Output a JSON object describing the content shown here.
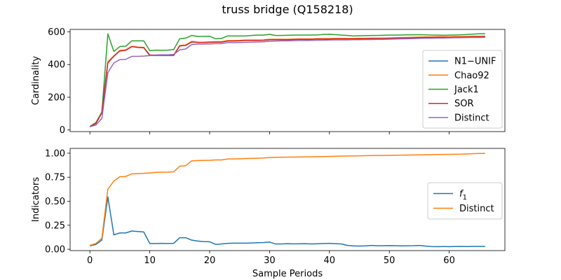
{
  "figure": {
    "title": "truss bridge (Q158218)"
  },
  "chart_data": [
    {
      "type": "line",
      "ylabel": "Cardinality",
      "xlabel": "",
      "xlim": [
        -3.3,
        69.3
      ],
      "ylim": [
        -10,
        615
      ],
      "xticks": [
        0,
        10,
        20,
        30,
        40,
        50,
        60
      ],
      "yticks": [
        0,
        200,
        400,
        600
      ],
      "ytick_labels": [
        "0",
        "200",
        "400",
        "600"
      ],
      "legend": "right",
      "x": [
        0,
        1,
        2,
        3,
        4,
        5,
        6,
        7,
        8,
        9,
        10,
        11,
        12,
        13,
        14,
        15,
        16,
        17,
        18,
        19,
        20,
        21,
        22,
        23,
        24,
        25,
        26,
        27,
        28,
        29,
        30,
        31,
        32,
        33,
        34,
        35,
        36,
        37,
        38,
        39,
        40,
        41,
        42,
        43,
        44,
        45,
        46,
        47,
        48,
        49,
        50,
        51,
        52,
        53,
        54,
        55,
        56,
        57,
        58,
        59,
        60,
        61,
        62,
        63,
        64,
        65,
        66
      ],
      "series": [
        {
          "name": "N1−UNIF",
          "color": "#1f77b4",
          "values": [
            20,
            40,
            105,
            415,
            450,
            485,
            488,
            510,
            505,
            503,
            455,
            455,
            455,
            455,
            455,
            515,
            518,
            540,
            535,
            535,
            537,
            538,
            538,
            545,
            545,
            546,
            548,
            548,
            548,
            549,
            553,
            553,
            553,
            553,
            554,
            555,
            555,
            555,
            557,
            557,
            557,
            558,
            558,
            558,
            558,
            559,
            559,
            560,
            560,
            560,
            561,
            562,
            563,
            564,
            565,
            566,
            567,
            567,
            568,
            568,
            568,
            569,
            569,
            570,
            571,
            571,
            572
          ]
        },
        {
          "name": "Chao92",
          "color": "#ff7f0e",
          "values": [
            20,
            40,
            105,
            418,
            452,
            487,
            490,
            512,
            507,
            505,
            458,
            457,
            457,
            457,
            457,
            517,
            520,
            542,
            537,
            537,
            539,
            540,
            540,
            547,
            547,
            548,
            550,
            550,
            550,
            551,
            555,
            555,
            555,
            555,
            556,
            557,
            557,
            557,
            559,
            559,
            559,
            560,
            560,
            560,
            560,
            561,
            561,
            562,
            562,
            562,
            563,
            564,
            565,
            566,
            567,
            568,
            569,
            569,
            570,
            570,
            570,
            571,
            571,
            572,
            573,
            573,
            574
          ]
        },
        {
          "name": "Jack1",
          "color": "#2ca02c",
          "values": [
            22,
            45,
            110,
            588,
            480,
            510,
            512,
            545,
            545,
            545,
            485,
            488,
            487,
            488,
            492,
            558,
            562,
            578,
            572,
            572,
            573,
            558,
            560,
            575,
            575,
            575,
            575,
            578,
            580,
            580,
            585,
            578,
            578,
            579,
            580,
            580,
            580,
            581,
            581,
            584,
            585,
            583,
            580,
            578,
            575,
            576,
            577,
            578,
            578,
            579,
            580,
            580,
            581,
            582,
            582,
            583,
            582,
            580,
            580,
            579,
            580,
            581,
            582,
            584,
            586,
            588,
            588
          ]
        },
        {
          "name": "SOR",
          "color": "#d62728",
          "values": [
            20,
            40,
            105,
            410,
            452,
            483,
            487,
            510,
            505,
            503,
            458,
            458,
            458,
            458,
            458,
            514,
            517,
            538,
            535,
            535,
            536,
            537,
            537,
            544,
            544,
            545,
            547,
            547,
            547,
            548,
            552,
            552,
            552,
            552,
            553,
            554,
            554,
            554,
            556,
            556,
            556,
            557,
            557,
            557,
            557,
            558,
            558,
            559,
            559,
            559,
            560,
            561,
            562,
            563,
            564,
            565,
            566,
            566,
            567,
            567,
            567,
            568,
            568,
            569,
            570,
            570,
            571
          ]
        },
        {
          "name": "Distinct",
          "color": "#9467bd",
          "values": [
            20,
            30,
            70,
            350,
            410,
            430,
            432,
            450,
            450,
            452,
            455,
            458,
            460,
            460,
            462,
            490,
            495,
            522,
            525,
            525,
            526,
            528,
            528,
            534,
            534,
            535,
            536,
            537,
            538,
            539,
            543,
            544,
            545,
            545,
            546,
            547,
            547,
            548,
            549,
            549,
            550,
            551,
            551,
            551,
            552,
            552,
            553,
            553,
            554,
            554,
            555,
            556,
            557,
            558,
            559,
            560,
            561,
            561,
            562,
            562,
            563,
            564,
            564,
            565,
            566,
            566,
            567
          ]
        }
      ]
    },
    {
      "type": "line",
      "ylabel": "Indicators",
      "xlabel": "Sample Periods",
      "xlim": [
        -3.3,
        69.3
      ],
      "ylim": [
        -0.014,
        1.05
      ],
      "xticks": [
        0,
        10,
        20,
        30,
        40,
        50,
        60
      ],
      "yticks": [
        0,
        0.25,
        0.5,
        0.75,
        1.0
      ],
      "ytick_labels": [
        "0.00",
        "0.25",
        "0.50",
        "0.75",
        "1.00"
      ],
      "legend": "right",
      "x": [
        0,
        1,
        2,
        3,
        4,
        5,
        6,
        7,
        8,
        9,
        10,
        11,
        12,
        13,
        14,
        15,
        16,
        17,
        18,
        19,
        20,
        21,
        22,
        23,
        24,
        25,
        26,
        27,
        28,
        29,
        30,
        31,
        32,
        33,
        34,
        35,
        36,
        37,
        38,
        39,
        40,
        41,
        42,
        43,
        44,
        45,
        46,
        47,
        48,
        49,
        50,
        51,
        52,
        53,
        54,
        55,
        56,
        57,
        58,
        59,
        60,
        61,
        62,
        63,
        64,
        65,
        66
      ],
      "series": [
        {
          "name": "f",
          "name_subscript": "1",
          "color": "#1f77b4",
          "values": [
            0.035,
            0.05,
            0.095,
            0.545,
            0.15,
            0.17,
            0.17,
            0.19,
            0.185,
            0.18,
            0.06,
            0.06,
            0.062,
            0.06,
            0.062,
            0.12,
            0.12,
            0.095,
            0.085,
            0.08,
            0.078,
            0.05,
            0.055,
            0.062,
            0.063,
            0.063,
            0.063,
            0.065,
            0.068,
            0.07,
            0.075,
            0.055,
            0.055,
            0.058,
            0.056,
            0.057,
            0.058,
            0.055,
            0.057,
            0.06,
            0.062,
            0.058,
            0.055,
            0.04,
            0.035,
            0.033,
            0.035,
            0.04,
            0.036,
            0.037,
            0.038,
            0.037,
            0.035,
            0.036,
            0.037,
            0.04,
            0.033,
            0.028,
            0.027,
            0.028,
            0.027,
            0.029,
            0.03,
            0.028,
            0.03,
            0.03,
            0.03
          ]
        },
        {
          "name": "Distinct",
          "color": "#ff7f0e",
          "values": [
            0.04,
            0.06,
            0.115,
            0.625,
            0.71,
            0.755,
            0.758,
            0.785,
            0.788,
            0.79,
            0.795,
            0.8,
            0.802,
            0.803,
            0.806,
            0.865,
            0.87,
            0.92,
            0.923,
            0.925,
            0.926,
            0.93,
            0.93,
            0.94,
            0.941,
            0.942,
            0.944,
            0.946,
            0.948,
            0.95,
            0.955,
            0.957,
            0.958,
            0.959,
            0.96,
            0.961,
            0.962,
            0.963,
            0.964,
            0.965,
            0.966,
            0.968,
            0.97,
            0.971,
            0.972,
            0.973,
            0.974,
            0.975,
            0.976,
            0.977,
            0.978,
            0.979,
            0.98,
            0.981,
            0.982,
            0.983,
            0.984,
            0.985,
            0.986,
            0.987,
            0.988,
            0.989,
            0.99,
            0.993,
            0.995,
            0.997,
            0.998
          ]
        }
      ]
    }
  ]
}
